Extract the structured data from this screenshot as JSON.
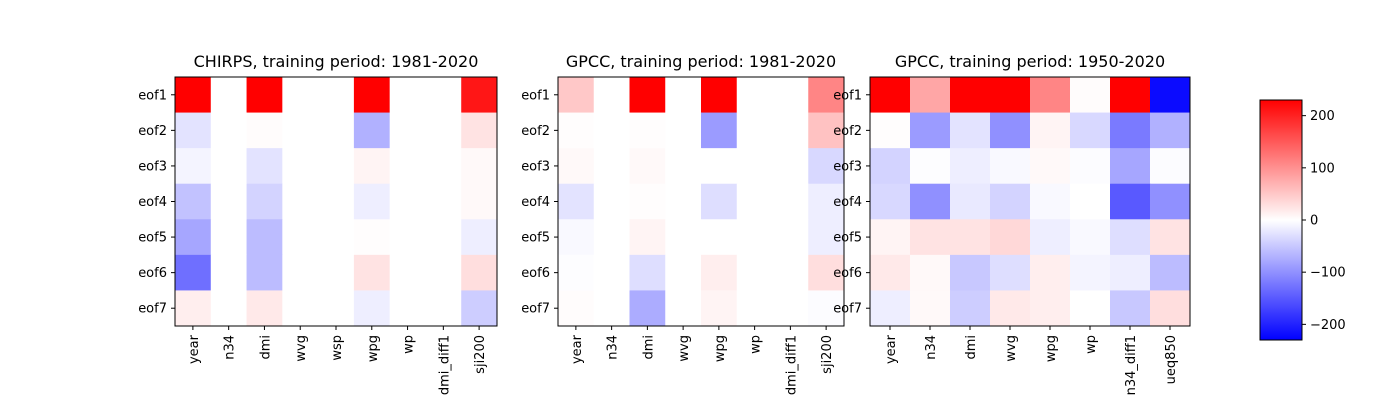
{
  "chart_data": [
    {
      "type": "heatmap",
      "title": "CHIRPS, training period: 1981-2020",
      "rows": [
        "eof1",
        "eof2",
        "eof3",
        "eof4",
        "eof5",
        "eof6",
        "eof7"
      ],
      "columns": [
        "year",
        "n34",
        "dmi",
        "wvg",
        "wsp",
        "wpg",
        "wp",
        "dmi_diff1",
        "sji200"
      ],
      "values": [
        [
          230,
          0,
          230,
          0,
          0,
          230,
          0,
          0,
          210
        ],
        [
          -25,
          0,
          3,
          0,
          0,
          -70,
          0,
          0,
          25
        ],
        [
          -10,
          0,
          -25,
          0,
          0,
          10,
          0,
          0,
          5
        ],
        [
          -55,
          0,
          -40,
          0,
          0,
          -15,
          0,
          0,
          5
        ],
        [
          -80,
          0,
          -60,
          0,
          0,
          2,
          0,
          0,
          -15
        ],
        [
          -130,
          0,
          -60,
          0,
          0,
          25,
          0,
          0,
          30
        ],
        [
          15,
          0,
          20,
          0,
          0,
          -15,
          0,
          0,
          -45
        ]
      ]
    },
    {
      "type": "heatmap",
      "title": "GPCC, training period: 1981-2020",
      "rows": [
        "eof1",
        "eof2",
        "eof3",
        "eof4",
        "eof5",
        "eof6",
        "eof7"
      ],
      "columns": [
        "year",
        "n34",
        "dmi",
        "wvg",
        "wpg",
        "wp",
        "dmi_diff1",
        "sji200"
      ],
      "values": [
        [
          50,
          0,
          230,
          0,
          230,
          0,
          0,
          110
        ],
        [
          2,
          0,
          2,
          0,
          -90,
          0,
          0,
          55
        ],
        [
          5,
          0,
          5,
          0,
          0,
          0,
          0,
          -35
        ],
        [
          -25,
          0,
          2,
          0,
          -30,
          0,
          0,
          -15
        ],
        [
          -5,
          0,
          10,
          0,
          0,
          0,
          0,
          -15
        ],
        [
          -2,
          0,
          -30,
          0,
          15,
          0,
          0,
          30
        ],
        [
          3,
          0,
          -75,
          0,
          10,
          0,
          0,
          -3
        ]
      ]
    },
    {
      "type": "heatmap",
      "title": "GPCC, training period: 1950-2020",
      "rows": [
        "eof1",
        "eof2",
        "eof3",
        "eof4",
        "eof5",
        "eof6",
        "eof7"
      ],
      "columns": [
        "year",
        "n34",
        "dmi",
        "wvg",
        "wpg",
        "wp",
        "n34_diff1",
        "ueq850"
      ],
      "values": [
        [
          230,
          80,
          230,
          230,
          110,
          3,
          230,
          -220
        ],
        [
          2,
          -90,
          -25,
          -100,
          10,
          -35,
          -120,
          -70
        ],
        [
          -40,
          -2,
          -15,
          -5,
          5,
          -3,
          -80,
          -3
        ],
        [
          -35,
          -100,
          -20,
          -40,
          -5,
          0,
          -150,
          -100
        ],
        [
          10,
          25,
          25,
          35,
          -15,
          -5,
          -30,
          25
        ],
        [
          20,
          5,
          -50,
          -30,
          15,
          -10,
          -15,
          -60
        ],
        [
          -15,
          5,
          -45,
          20,
          15,
          0,
          -50,
          30
        ]
      ]
    }
  ],
  "colorbar": {
    "colormap": "bwr",
    "vmin": -230,
    "vmax": 230,
    "ticks": [
      200,
      100,
      0,
      -100,
      -200
    ],
    "tick_labels": [
      "200",
      "100",
      "0",
      "−100",
      "−200"
    ]
  }
}
